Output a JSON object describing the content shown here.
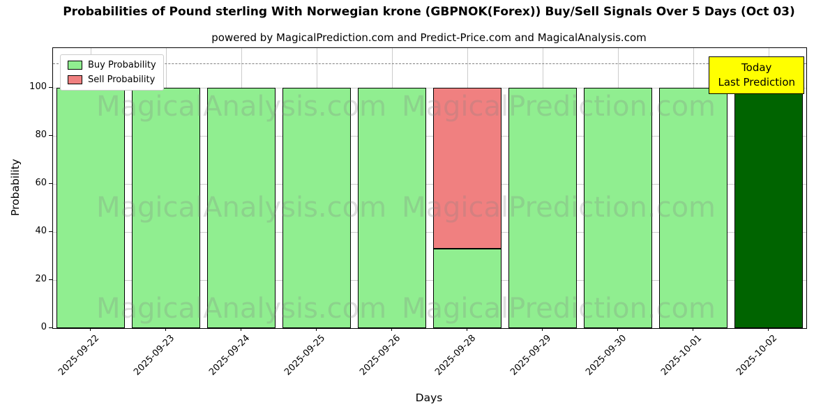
{
  "chart_data": {
    "type": "bar",
    "stacked": true,
    "title": "Probabilities of Pound sterling With Norwegian krone (GBPNOK(Forex)) Buy/Sell Signals Over 5 Days (Oct 03)",
    "subtitle": "powered by MagicalPrediction.com and Predict-Price.com and MagicalAnalysis.com",
    "xlabel": "Days",
    "ylabel": "Probability",
    "categories": [
      "2025-09-22",
      "2025-09-23",
      "2025-09-24",
      "2025-09-25",
      "2025-09-26",
      "2025-09-28",
      "2025-09-29",
      "2025-09-30",
      "2025-10-01",
      "2025-10-02"
    ],
    "series": [
      {
        "name": "Buy Probability",
        "color": "#90ee90",
        "values": [
          100,
          100,
          100,
          100,
          100,
          33,
          100,
          100,
          100,
          100
        ]
      },
      {
        "name": "Sell Probability",
        "color": "#f08080",
        "values": [
          0,
          0,
          0,
          0,
          0,
          67,
          0,
          0,
          0,
          0
        ]
      }
    ],
    "today_bar": {
      "index": 9,
      "color": "#006400"
    },
    "ylim": [
      0,
      116.5
    ],
    "yticks": [
      0,
      20,
      40,
      60,
      80,
      100
    ],
    "dashed_line_y": 110,
    "grid": true,
    "legend_position": "upper left"
  },
  "annotations": {
    "today_box": {
      "line1": "Today",
      "line2": "Last Prediction",
      "bg": "#ffff00"
    }
  },
  "watermarks": [
    {
      "text": "MagicalAnalysis.com"
    },
    {
      "text": "MagicalPrediction.com"
    }
  ]
}
